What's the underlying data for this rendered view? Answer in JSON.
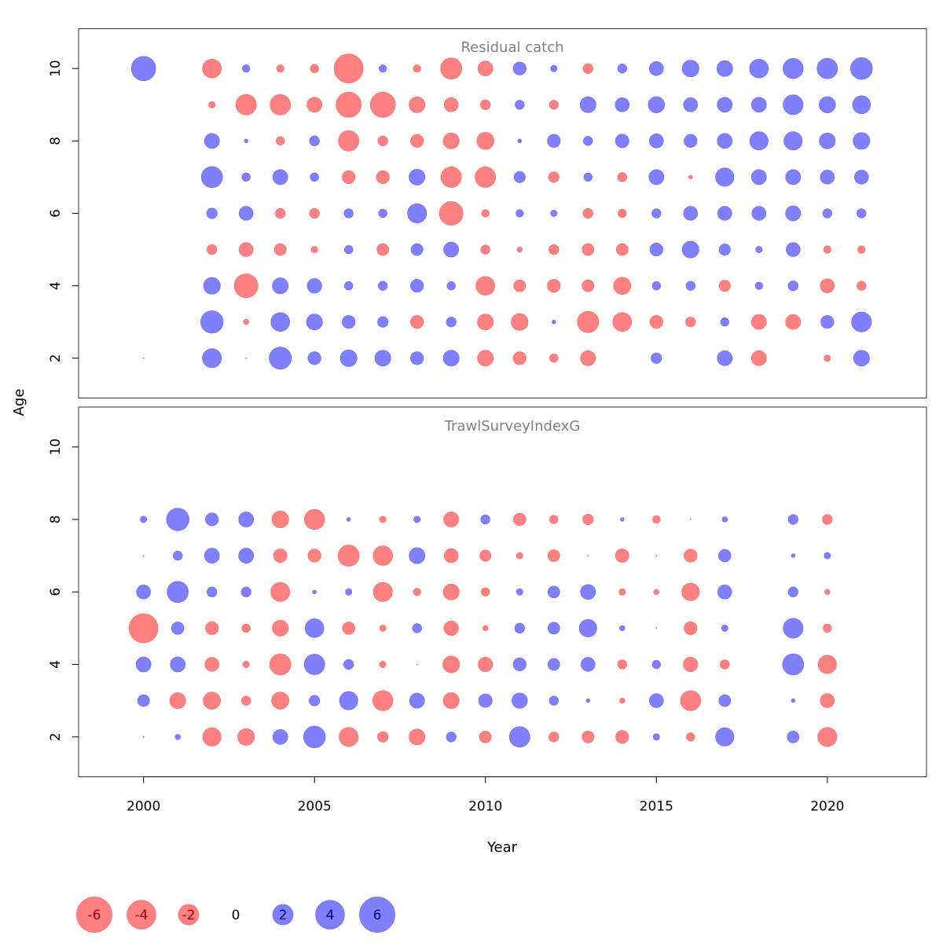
{
  "chart_data": {
    "type": "bubble",
    "xlabel": "Year",
    "ylabel": "Age",
    "xlim": [
      1998.1,
      2022.9
    ],
    "x_ticks": [
      2000,
      2005,
      2010,
      2015,
      2020
    ],
    "y_ticks": [
      2,
      4,
      6,
      8,
      10
    ],
    "ylim": [
      0.9,
      11.1
    ],
    "colors": {
      "negative": "#ff8080",
      "positive": "#8080ff",
      "negative_text": "#a00000",
      "positive_text": "#00008b"
    },
    "legend": {
      "values": [
        -6,
        -4,
        -2,
        0,
        2,
        4,
        6
      ],
      "labels": [
        "-6",
        "-4",
        "-2",
        "0",
        "2",
        "4",
        "6"
      ],
      "placement": "bottom-left"
    },
    "panels": [
      {
        "title": "Residual catch",
        "ages": [
          2,
          3,
          4,
          5,
          6,
          7,
          8,
          9,
          10
        ],
        "years": [
          2000,
          2001,
          2002,
          2003,
          2004,
          2005,
          2006,
          2007,
          2008,
          2009,
          2010,
          2011,
          2012,
          2013,
          2014,
          2015,
          2016,
          2017,
          2018,
          2019,
          2020,
          2021
        ],
        "residuals": [
          [
            0.0,
            null,
            2.6,
            0.0,
            3.5,
            1.2,
            2.0,
            1.8,
            1.2,
            1.8,
            -1.8,
            -1.2,
            -0.5,
            -1.6,
            null,
            0.8,
            null,
            1.6,
            -1.6,
            null,
            -0.3,
            1.8
          ],
          [
            null,
            null,
            3.6,
            -0.2,
            2.5,
            1.8,
            1.2,
            0.8,
            -1.2,
            0.7,
            -1.8,
            -2.0,
            0.1,
            -3.2,
            -2.5,
            -1.2,
            -0.7,
            0.5,
            -1.6,
            -1.6,
            1.2,
            2.8
          ],
          [
            null,
            null,
            2.0,
            -4.0,
            1.8,
            1.5,
            0.5,
            0.6,
            1.2,
            0.5,
            -2.5,
            -1.0,
            -1.2,
            -1.0,
            -2.1,
            0.5,
            0.6,
            -0.9,
            0.4,
            0.7,
            -1.4,
            -0.6
          ],
          [
            null,
            null,
            -0.7,
            -1.4,
            -1.0,
            -0.3,
            0.5,
            -1.0,
            1.0,
            1.6,
            -0.6,
            -0.2,
            -0.7,
            -1.0,
            -1.0,
            1.2,
            2.0,
            0.9,
            0.3,
            1.4,
            -0.4,
            -0.4
          ],
          [
            null,
            null,
            0.8,
            1.4,
            -0.7,
            -0.7,
            0.6,
            0.5,
            2.6,
            -4.0,
            -0.4,
            0.4,
            0.3,
            -0.7,
            -0.5,
            0.6,
            1.4,
            1.4,
            1.4,
            1.6,
            0.6,
            0.6
          ],
          [
            null,
            null,
            3.2,
            0.5,
            1.6,
            0.5,
            -1.2,
            -1.2,
            1.8,
            -3.0,
            -3.0,
            0.9,
            -0.8,
            0.5,
            -0.6,
            1.6,
            -0.1,
            2.4,
            1.6,
            1.6,
            1.4,
            1.4
          ],
          [
            null,
            null,
            1.6,
            0.1,
            -0.5,
            0.7,
            -3.0,
            -0.7,
            -1.2,
            -1.8,
            -2.1,
            0.1,
            1.2,
            0.6,
            1.3,
            1.4,
            1.2,
            1.6,
            2.4,
            2.4,
            1.8,
            2.0
          ],
          [
            null,
            null,
            -0.3,
            -3.0,
            -3.0,
            -1.6,
            -4.5,
            -4.5,
            -1.8,
            -1.4,
            -0.7,
            0.6,
            -0.6,
            1.8,
            1.4,
            1.9,
            1.4,
            1.6,
            1.6,
            2.8,
            1.9,
            2.3
          ],
          [
            4.2,
            null,
            -2.5,
            0.4,
            -0.4,
            -0.5,
            -6.0,
            0.4,
            -0.4,
            -3.2,
            -1.6,
            1.2,
            0.3,
            -0.7,
            0.6,
            1.4,
            2.0,
            1.8,
            2.5,
            2.9,
            3.0,
            3.4
          ]
        ]
      },
      {
        "title": "TrawlSurveyIndexG",
        "ages": [
          2,
          3,
          4,
          5,
          6,
          7,
          8
        ],
        "years": [
          2000,
          2001,
          2002,
          2003,
          2004,
          2005,
          2006,
          2007,
          2008,
          2009,
          2010,
          2011,
          2012,
          2013,
          2014,
          2015,
          2016,
          2017,
          2018,
          2019,
          2020
        ],
        "residuals": [
          [
            0.0,
            0.2,
            -2.4,
            -2.0,
            1.6,
            3.4,
            -2.6,
            -0.8,
            -1.8,
            0.7,
            -1.0,
            3.0,
            -0.7,
            -1.0,
            -1.2,
            0.3,
            -0.5,
            2.4,
            null,
            1.0,
            -2.6
          ],
          [
            1.0,
            -1.8,
            -2.1,
            -0.6,
            -2.1,
            0.8,
            2.4,
            -2.9,
            1.6,
            -1.8,
            1.3,
            1.7,
            0.6,
            0.1,
            -0.2,
            1.4,
            -2.9,
            1.0,
            null,
            0.1,
            -1.4
          ],
          [
            1.6,
            1.6,
            -1.4,
            -0.3,
            -3.2,
            3.0,
            0.7,
            -0.3,
            0.0,
            -2.0,
            -1.5,
            1.2,
            1.0,
            1.4,
            -0.6,
            0.5,
            -1.5,
            -0.6,
            null,
            3.2,
            -2.4
          ],
          [
            -6.0,
            1.1,
            -1.2,
            -0.5,
            -1.8,
            2.5,
            -1.1,
            -0.3,
            0.6,
            -1.5,
            -0.2,
            0.7,
            1.0,
            2.2,
            0.2,
            0.0,
            -1.2,
            0.3,
            null,
            2.8,
            -0.5
          ],
          [
            1.4,
            3.2,
            0.7,
            0.7,
            -2.6,
            0.1,
            0.3,
            -2.6,
            -0.4,
            -1.8,
            -0.5,
            0.3,
            1.0,
            1.6,
            -0.3,
            -0.2,
            -2.2,
            1.4,
            null,
            0.7,
            -0.2
          ],
          [
            0.0,
            0.6,
            1.6,
            1.6,
            -1.3,
            -1.2,
            -3.2,
            -2.7,
            1.8,
            -1.4,
            -0.9,
            -0.3,
            -1.0,
            0.0,
            -1.3,
            0.0,
            -1.2,
            1.1,
            null,
            0.1,
            0.3
          ],
          [
            0.3,
            3.6,
            1.2,
            1.6,
            -2.0,
            -2.9,
            0.1,
            -0.3,
            0.3,
            -1.6,
            0.6,
            -1.1,
            -0.5,
            -0.8,
            0.1,
            -0.4,
            0.0,
            0.2,
            null,
            0.7,
            -0.7
          ]
        ]
      }
    ]
  }
}
